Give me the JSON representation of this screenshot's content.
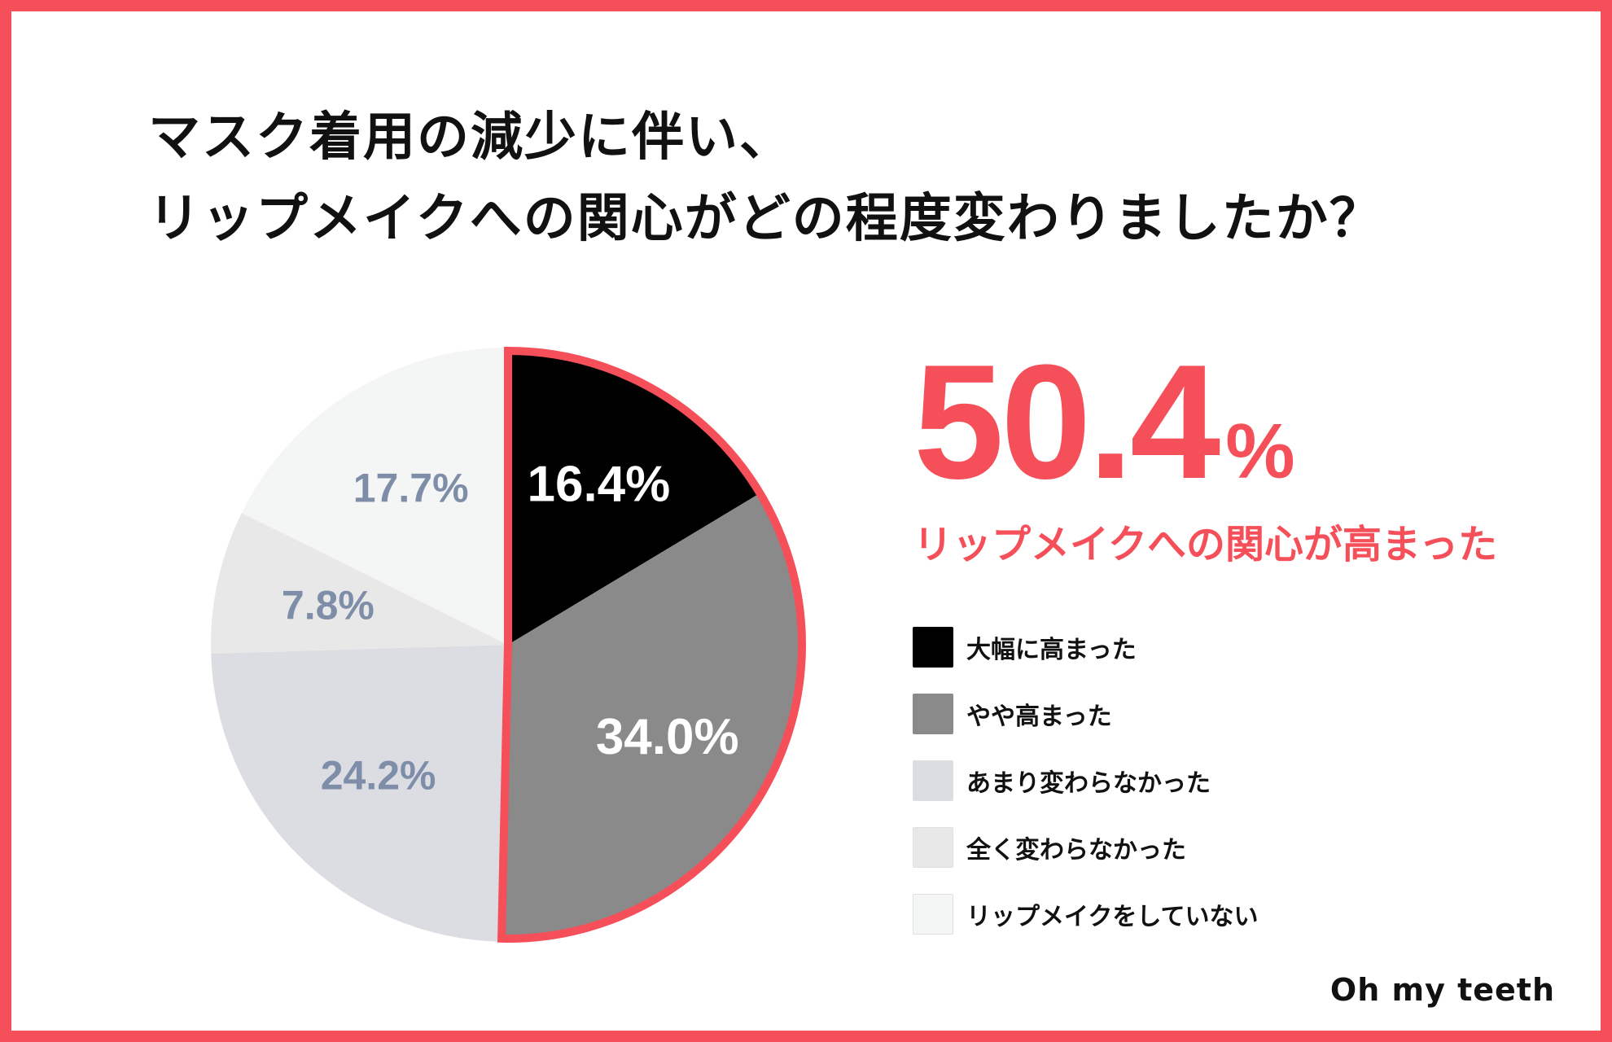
{
  "title": {
    "line1": "マスク着用の減少に伴い、",
    "line2": "リップメイクへの関心がどの程度変わりましたか？"
  },
  "headline": {
    "value": "50.4",
    "unit": "%",
    "caption": "リップメイクへの関心が高まった"
  },
  "brand": "Oh my teeth",
  "colors": {
    "accent": "#f5505a"
  },
  "chart_data": {
    "type": "pie",
    "title": "マスク着用の減少に伴い、リップメイクへの関心がどの程度変わりましたか？",
    "legend_position": "right",
    "highlight": [
      "大幅に高まった",
      "やや高まった"
    ],
    "slices": [
      {
        "label": "大幅に高まった",
        "value": 16.4,
        "display": "16.4%",
        "color": "#000000",
        "text_color": "#ffffff"
      },
      {
        "label": "やや高まった",
        "value": 34.0,
        "display": "34.0%",
        "color": "#8a8a8a",
        "text_color": "#ffffff"
      },
      {
        "label": "あまり変わらなかった",
        "value": 24.2,
        "display": "24.2%",
        "color": "#dcdde2",
        "text_color": "#7f8ea8"
      },
      {
        "label": "全く変わらなかった",
        "value": 7.8,
        "display": "7.8%",
        "color": "#e8e8e8",
        "text_color": "#7f8ea8"
      },
      {
        "label": "リップメイクをしていない",
        "value": 17.7,
        "display": "17.7%",
        "color": "#f4f5f5",
        "text_color": "#7f8ea8"
      }
    ]
  }
}
